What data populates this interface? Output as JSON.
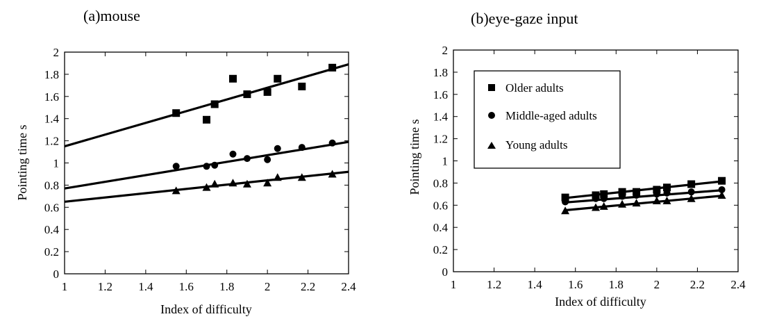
{
  "chart_data": [
    {
      "type": "scatter",
      "title": "(a)mouse",
      "xlabel": "Index of difficulty",
      "ylabel": "Pointing time s",
      "xlim": [
        1,
        2.4
      ],
      "ylim": [
        0,
        2
      ],
      "xticks": [
        "1",
        "1.2",
        "1.4",
        "1.6",
        "1.8",
        "2",
        "2.2",
        "2.4"
      ],
      "yticks": [
        "0",
        "0.2",
        "0.4",
        "0.6",
        "0.8",
        "1",
        "1.2",
        "1.4",
        "1.6",
        "1.8",
        "2"
      ],
      "grid": false,
      "series": [
        {
          "marker": "square",
          "x": [
            1.55,
            1.7,
            1.74,
            1.83,
            1.9,
            2.0,
            2.05,
            2.17,
            2.32
          ],
          "y": [
            1.45,
            1.39,
            1.53,
            1.76,
            1.62,
            1.64,
            1.76,
            1.69,
            1.86
          ],
          "fit": [
            1.15,
            1.89
          ]
        },
        {
          "marker": "circle",
          "x": [
            1.55,
            1.7,
            1.74,
            1.83,
            1.9,
            2.0,
            2.05,
            2.17,
            2.32
          ],
          "y": [
            0.97,
            0.97,
            0.98,
            1.08,
            1.04,
            1.03,
            1.13,
            1.14,
            1.18
          ],
          "fit": [
            0.77,
            1.19
          ]
        },
        {
          "marker": "triangle",
          "x": [
            1.55,
            1.7,
            1.74,
            1.83,
            1.9,
            2.0,
            2.05,
            2.17,
            2.32
          ],
          "y": [
            0.75,
            0.78,
            0.81,
            0.82,
            0.81,
            0.82,
            0.87,
            0.87,
            0.9
          ],
          "fit": [
            0.65,
            0.92
          ]
        }
      ]
    },
    {
      "type": "scatter",
      "title": "(b)eye-gaze input",
      "xlabel": "Index of difficulty",
      "ylabel": "Pointing time s",
      "xlim": [
        1,
        2.4
      ],
      "ylim": [
        0,
        2
      ],
      "xticks": [
        "1",
        "1.2",
        "1.4",
        "1.6",
        "1.8",
        "2",
        "2.2",
        "2.4"
      ],
      "yticks": [
        "0",
        "0.2",
        "0.4",
        "0.6",
        "0.8",
        "1",
        "1.2",
        "1.4",
        "1.6",
        "1.8",
        "2"
      ],
      "grid": false,
      "legend": {
        "placement": "top-left",
        "entries": [
          "Older adults",
          "Middle-aged adults",
          "Young adults"
        ]
      },
      "series": [
        {
          "name": "Older adults",
          "marker": "square",
          "x": [
            1.55,
            1.7,
            1.74,
            1.83,
            1.9,
            2.0,
            2.05,
            2.17,
            2.32
          ],
          "y": [
            0.67,
            0.69,
            0.7,
            0.72,
            0.72,
            0.74,
            0.76,
            0.79,
            0.82
          ],
          "fit_x": [
            1.55,
            2.32
          ],
          "fit": [
            0.665,
            0.815
          ]
        },
        {
          "name": "Middle-aged adults",
          "marker": "circle",
          "x": [
            1.55,
            1.7,
            1.74,
            1.83,
            1.9,
            2.0,
            2.05,
            2.17,
            2.32
          ],
          "y": [
            0.63,
            0.66,
            0.66,
            0.68,
            0.69,
            0.7,
            0.71,
            0.72,
            0.74
          ],
          "fit_x": [
            1.55,
            2.32
          ],
          "fit": [
            0.625,
            0.735
          ]
        },
        {
          "name": "Young adults",
          "marker": "triangle",
          "x": [
            1.55,
            1.7,
            1.74,
            1.83,
            1.9,
            2.0,
            2.05,
            2.17,
            2.32
          ],
          "y": [
            0.55,
            0.58,
            0.59,
            0.61,
            0.62,
            0.64,
            0.64,
            0.66,
            0.69
          ],
          "fit_x": [
            1.55,
            2.32
          ],
          "fit": [
            0.555,
            0.685
          ]
        }
      ]
    }
  ]
}
